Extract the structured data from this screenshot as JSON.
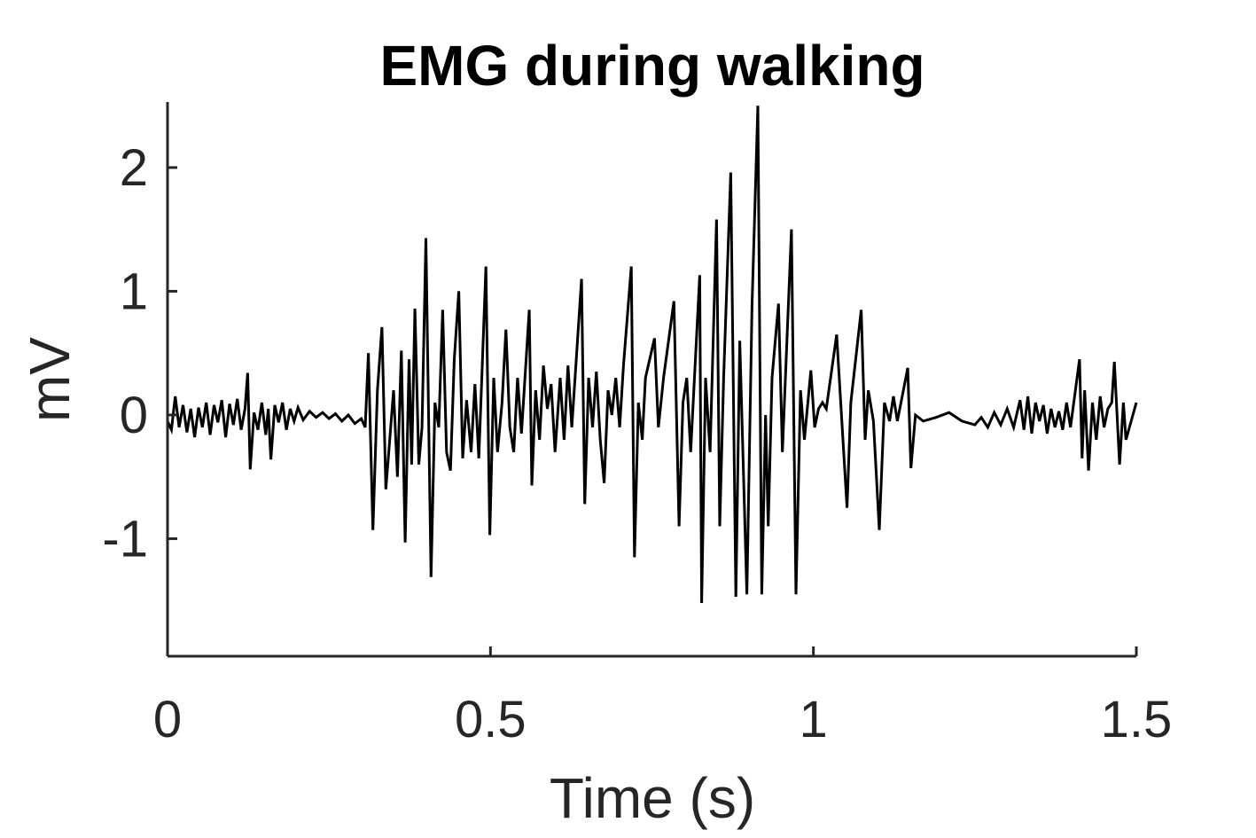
{
  "chart_data": {
    "type": "line",
    "title": "EMG during walking",
    "xlabel": "Time (s)",
    "ylabel": "mV",
    "xlim": [
      0,
      1.5
    ],
    "ylim": [
      -1.95,
      2.53
    ],
    "xticks": [
      0,
      0.5,
      1,
      1.5
    ],
    "xtick_labels": [
      "0",
      "0.5",
      "1",
      "1.5"
    ],
    "yticks": [
      -1,
      0,
      1,
      2
    ],
    "ytick_labels": [
      "-1",
      "0",
      "1",
      "2"
    ],
    "grid": false,
    "line_color": "#000000",
    "axis_color": "#262626",
    "series": [
      {
        "x": [
          0.0,
          0.006,
          0.012,
          0.018,
          0.024,
          0.03,
          0.036,
          0.042,
          0.048,
          0.054,
          0.06,
          0.066,
          0.072,
          0.078,
          0.084,
          0.09,
          0.096,
          0.102,
          0.108,
          0.114,
          0.12,
          0.124,
          0.128,
          0.134,
          0.14,
          0.146,
          0.152,
          0.156,
          0.16,
          0.166,
          0.172,
          0.178,
          0.184,
          0.19,
          0.196,
          0.202,
          0.21,
          0.22,
          0.23,
          0.24,
          0.25,
          0.26,
          0.27,
          0.28,
          0.29,
          0.3,
          0.306,
          0.311,
          0.318,
          0.325,
          0.332,
          0.338,
          0.344,
          0.35,
          0.356,
          0.362,
          0.368,
          0.374,
          0.378,
          0.383,
          0.389,
          0.394,
          0.4,
          0.408,
          0.414,
          0.42,
          0.426,
          0.432,
          0.438,
          0.444,
          0.451,
          0.457,
          0.463,
          0.47,
          0.476,
          0.482,
          0.493,
          0.499,
          0.505,
          0.511,
          0.518,
          0.524,
          0.53,
          0.536,
          0.542,
          0.548,
          0.56,
          0.564,
          0.57,
          0.576,
          0.582,
          0.588,
          0.594,
          0.6,
          0.608,
          0.614,
          0.62,
          0.626,
          0.641,
          0.646,
          0.652,
          0.658,
          0.664,
          0.67,
          0.676,
          0.682,
          0.688,
          0.694,
          0.7,
          0.706,
          0.718,
          0.723,
          0.729,
          0.735,
          0.74,
          0.754,
          0.76,
          0.768,
          0.784,
          0.792,
          0.798,
          0.804,
          0.81,
          0.824,
          0.827,
          0.833,
          0.84,
          0.85,
          0.855,
          0.861,
          0.872,
          0.88,
          0.886,
          0.897,
          0.905,
          0.914,
          0.92,
          0.926,
          0.93,
          0.936,
          0.946,
          0.952,
          0.966,
          0.973,
          0.98,
          0.986,
          0.996,
          1.002,
          1.008,
          1.014,
          1.02,
          1.036,
          1.052,
          1.058,
          1.074,
          1.08,
          1.085,
          1.093,
          1.102,
          1.11,
          1.118,
          1.124,
          1.13,
          1.146,
          1.151,
          1.158,
          1.17,
          1.19,
          1.21,
          1.23,
          1.25,
          1.26,
          1.27,
          1.28,
          1.29,
          1.3,
          1.31,
          1.32,
          1.326,
          1.332,
          1.338,
          1.344,
          1.35,
          1.356,
          1.362,
          1.368,
          1.374,
          1.38,
          1.386,
          1.392,
          1.398,
          1.412,
          1.416,
          1.42,
          1.426,
          1.432,
          1.438,
          1.444,
          1.45,
          1.456,
          1.462,
          1.466,
          1.474,
          1.48,
          1.484,
          1.5
        ],
        "y": [
          -0.05,
          -0.12,
          0.15,
          -0.1,
          0.08,
          -0.14,
          0.05,
          -0.18,
          0.06,
          -0.1,
          0.1,
          -0.16,
          0.08,
          -0.06,
          0.12,
          -0.18,
          0.09,
          -0.08,
          0.13,
          -0.12,
          0.05,
          0.34,
          -0.44,
          0.02,
          -0.12,
          0.1,
          -0.16,
          0.05,
          -0.36,
          0.08,
          -0.06,
          0.1,
          -0.12,
          0.05,
          -0.05,
          0.06,
          -0.04,
          0.03,
          -0.02,
          0.02,
          -0.03,
          0.01,
          -0.05,
          0.0,
          -0.07,
          -0.03,
          -0.1,
          0.5,
          -0.93,
          0.2,
          0.71,
          -0.6,
          -0.2,
          0.2,
          -0.5,
          0.52,
          -1.03,
          0.45,
          -0.4,
          0.86,
          -0.4,
          -0.1,
          1.43,
          -1.31,
          0.1,
          -0.1,
          0.85,
          -0.3,
          -0.45,
          0.45,
          1.0,
          -0.35,
          0.12,
          -0.3,
          0.25,
          -0.35,
          1.2,
          -0.97,
          0.3,
          -0.3,
          0.1,
          0.69,
          -0.1,
          -0.3,
          0.3,
          -0.15,
          0.85,
          -0.57,
          0.2,
          -0.2,
          0.4,
          0.05,
          0.25,
          -0.3,
          0.3,
          -0.2,
          0.4,
          -0.1,
          1.1,
          -0.72,
          0.3,
          -0.1,
          0.35,
          -0.2,
          -0.55,
          0.2,
          0.0,
          0.3,
          -0.1,
          0.4,
          1.2,
          -1.15,
          0.1,
          -0.2,
          0.3,
          0.62,
          -0.1,
          0.3,
          0.92,
          -0.9,
          0.1,
          0.3,
          -0.3,
          1.13,
          -1.52,
          0.3,
          -0.3,
          1.58,
          -0.9,
          0.3,
          1.96,
          -1.47,
          0.6,
          -1.45,
          0.88,
          2.5,
          -1.45,
          0.0,
          -0.9,
          0.3,
          0.9,
          -0.3,
          1.5,
          -1.45,
          0.2,
          -0.2,
          0.36,
          -0.1,
          0.05,
          0.1,
          0.05,
          0.65,
          -0.75,
          0.1,
          0.85,
          -0.2,
          0.2,
          -0.05,
          -0.93,
          0.1,
          -0.05,
          0.15,
          -0.05,
          0.38,
          -0.43,
          0.0,
          -0.05,
          -0.02,
          0.02,
          -0.05,
          -0.08,
          -0.02,
          -0.1,
          0.02,
          -0.08,
          0.05,
          -0.1,
          0.12,
          -0.12,
          0.15,
          -0.15,
          0.1,
          -0.05,
          0.08,
          -0.15,
          0.05,
          -0.1,
          0.03,
          -0.12,
          0.1,
          -0.1,
          0.45,
          -0.35,
          0.2,
          -0.45,
          0.1,
          -0.2,
          0.15,
          -0.1,
          0.05,
          0.1,
          0.43,
          -0.4,
          0.1,
          -0.2,
          0.1
        ]
      }
    ]
  }
}
